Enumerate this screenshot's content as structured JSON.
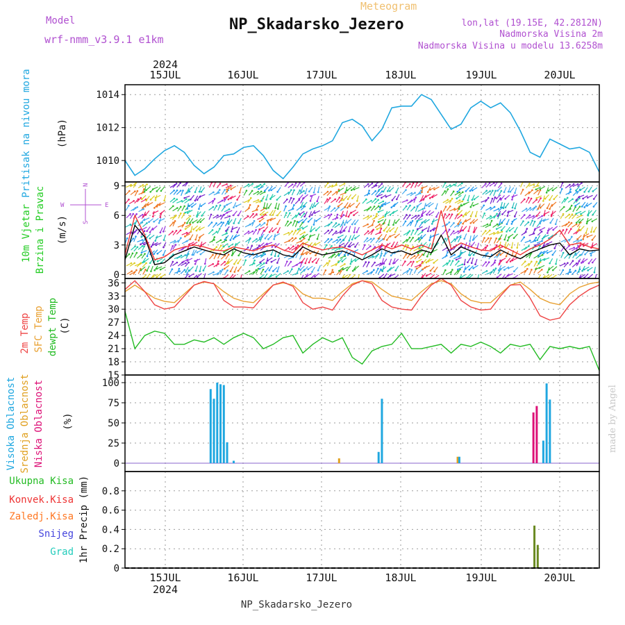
{
  "header": {
    "model_label": "Model",
    "model_name": "wrf-nmm_v3.9.1 e1km",
    "meteogram_label": "Meteogram",
    "station_title": "NP_Skadarsko_Jezero",
    "lonlat": "lon,lat (19.15E, 42.2812N)",
    "altitude": "Nadmorska Visina 2m",
    "model_altitude": "Nadmorska Visina u modelu 13.6258m",
    "year": "2024",
    "footer_station": "NP_Skadarsko_Jezero",
    "credit": "made by Angel"
  },
  "days": [
    "15JUL",
    "16JUL",
    "17JUL",
    "18JUL",
    "19JUL",
    "20JUL"
  ],
  "colors": {
    "pressure": "#1fa7e0",
    "wind_label": "#22cc22",
    "wind_speed": "#000000",
    "wind_gust": "#ee3333",
    "temp2m": "#ee4444",
    "sfc_temp": "#e8a030",
    "dewpoint": "#22bb22",
    "cloud_high": "#1fa7e0",
    "cloud_mid": "#e0a020",
    "cloud_low": "#dd1177",
    "rain_total": "#22bb22",
    "rain_conv": "#ee3333",
    "rain_frozen": "#ff7722",
    "snow": "#4444dd",
    "graupel": "#22ccbb",
    "header_purple": "#b050d0",
    "header_orange": "#f0c070"
  },
  "panels": {
    "pressure": {
      "label": "Pritisak na nivou mora",
      "unit": "(hPa)",
      "ticks": [
        "1010",
        "1012",
        "1014"
      ]
    },
    "wind": {
      "label1": "10m Vjetar",
      "label2": "Brzina i Pravac",
      "unit": "(m/s)",
      "ticks": [
        "0",
        "3",
        "6",
        "9"
      ],
      "compass": {
        "n": "N",
        "s": "S",
        "e": "E",
        "w": "W"
      }
    },
    "temp": {
      "label1": "2m Temp",
      "label2": "SFC Temp",
      "label3": "dewpt Temp",
      "unit": "(C)",
      "ticks": [
        "15",
        "18",
        "21",
        "24",
        "27",
        "30",
        "33",
        "36"
      ]
    },
    "cloud": {
      "label1": "Visoka Oblacnost",
      "label2": "Srednja Oblacnost",
      "label3": "Niska Oblacnost",
      "unit": "(%)",
      "ticks": [
        "0",
        "25",
        "50",
        "75",
        "100"
      ]
    },
    "precip": {
      "legend": [
        "Ukupna Kisa",
        "Konvek.Kisa",
        "Zaledj.Kisa",
        "Snijeg",
        "Grad"
      ],
      "unit": "1hr Precip (mm)",
      "ticks": [
        "0",
        "0.2",
        "0.4",
        "0.6",
        "0.8"
      ]
    }
  },
  "chart_data": [
    {
      "type": "line",
      "title": "Pritisak na nivou mora",
      "ylabel": "(hPa)",
      "ylim": [
        1008.7,
        1014.6
      ],
      "x_hours": [
        0,
        3,
        6,
        9,
        12,
        15,
        18,
        21,
        24,
        27,
        30,
        33,
        36,
        39,
        42,
        45,
        48,
        51,
        54,
        57,
        60,
        63,
        66,
        69,
        72,
        75,
        78,
        81,
        84,
        87,
        90,
        93,
        96,
        99,
        102,
        105,
        108,
        111,
        114,
        117,
        120,
        123,
        126,
        129,
        132,
        135,
        138,
        141,
        144
      ],
      "series": [
        {
          "name": "Pritisak na nivou mora",
          "values": [
            1010.0,
            1009.1,
            1009.5,
            1010.1,
            1010.6,
            1010.9,
            1010.5,
            1009.7,
            1009.2,
            1009.6,
            1010.3,
            1010.4,
            1010.8,
            1010.9,
            1010.3,
            1009.4,
            1008.9,
            1009.6,
            1010.4,
            1010.7,
            1010.9,
            1011.2,
            1012.3,
            1012.5,
            1012.1,
            1011.2,
            1011.9,
            1013.2,
            1013.3,
            1013.3,
            1014.0,
            1013.7,
            1012.8,
            1011.9,
            1012.2,
            1013.2,
            1013.6,
            1013.2,
            1013.5,
            1012.9,
            1011.8,
            1010.5,
            1010.2,
            1011.3,
            1011.0,
            1010.7,
            1010.8,
            1010.5,
            1009.3
          ]
        }
      ]
    },
    {
      "type": "line",
      "title": "10m Vjetar Brzina i Pravac",
      "ylabel": "(m/s)",
      "ylim": [
        -0.4,
        9.4
      ],
      "x_hours": [
        0,
        3,
        6,
        9,
        12,
        15,
        18,
        21,
        24,
        27,
        30,
        33,
        36,
        39,
        42,
        45,
        48,
        51,
        54,
        57,
        60,
        63,
        66,
        69,
        72,
        75,
        78,
        81,
        84,
        87,
        90,
        93,
        96,
        99,
        102,
        105,
        108,
        111,
        114,
        117,
        120,
        123,
        126,
        129,
        132,
        135,
        138,
        141,
        144
      ],
      "series": [
        {
          "values": [
            1.5,
            5.0,
            3.8,
            1.0,
            1.2,
            2.0,
            2.4,
            2.8,
            2.5,
            2.2,
            2.0,
            2.6,
            2.2,
            2.0,
            2.3,
            2.5,
            2.0,
            1.8,
            2.8,
            2.3,
            2.0,
            2.2,
            2.4,
            2.0,
            1.5,
            2.0,
            2.6,
            2.2,
            2.4,
            2.0,
            2.5,
            2.2,
            4.0,
            2.0,
            2.8,
            2.4,
            2.0,
            1.8,
            2.5,
            2.0,
            1.6,
            2.2,
            2.6,
            3.0,
            3.2,
            2.0,
            2.6,
            2.4,
            2.5
          ]
        },
        {
          "values": [
            2.0,
            6.0,
            4.0,
            1.5,
            1.8,
            2.5,
            2.8,
            3.0,
            2.8,
            2.5,
            2.4,
            2.8,
            2.6,
            2.4,
            2.8,
            3.0,
            2.5,
            2.2,
            3.2,
            2.8,
            2.5,
            2.7,
            2.8,
            2.4,
            2.0,
            2.5,
            3.0,
            2.6,
            3.0,
            2.6,
            3.0,
            2.6,
            6.5,
            2.6,
            3.2,
            2.8,
            2.5,
            2.4,
            3.0,
            2.5,
            2.0,
            2.6,
            3.0,
            3.6,
            4.5,
            3.0,
            3.2,
            2.8,
            2.6
          ]
        }
      ]
    },
    {
      "type": "line",
      "title": "2m Temp / SFC Temp / dewpt Temp",
      "ylabel": "(C)",
      "ylim": [
        15,
        37
      ],
      "x_hours": [
        0,
        3,
        6,
        9,
        12,
        15,
        18,
        21,
        24,
        27,
        30,
        33,
        36,
        39,
        42,
        45,
        48,
        51,
        54,
        57,
        60,
        63,
        66,
        69,
        72,
        75,
        78,
        81,
        84,
        87,
        90,
        93,
        96,
        99,
        102,
        105,
        108,
        111,
        114,
        117,
        120,
        123,
        126,
        129,
        132,
        135,
        138,
        141,
        144
      ],
      "series": [
        {
          "name": "2m Temp",
          "values": [
            34.5,
            36.5,
            34.0,
            31.0,
            30.0,
            30.5,
            33.0,
            35.5,
            36.3,
            35.8,
            32.0,
            30.5,
            30.5,
            30.3,
            33.0,
            35.5,
            36.2,
            35.2,
            31.5,
            30.0,
            30.5,
            29.8,
            33.0,
            35.5,
            36.5,
            35.8,
            32.0,
            30.5,
            30.0,
            29.8,
            33.0,
            35.5,
            37.0,
            35.5,
            32.0,
            30.5,
            29.8,
            30.0,
            33.0,
            35.5,
            35.6,
            32.5,
            28.5,
            27.5,
            28.0,
            31.0,
            33.0,
            34.5,
            35.5
          ]
        },
        {
          "name": "SFC Temp",
          "values": [
            34.0,
            35.5,
            34.0,
            32.5,
            31.8,
            31.5,
            33.5,
            35.5,
            36.2,
            35.8,
            34.0,
            32.5,
            31.8,
            31.5,
            33.5,
            35.5,
            36.0,
            35.5,
            33.5,
            32.5,
            32.5,
            32.0,
            34.0,
            35.8,
            36.5,
            36.2,
            34.5,
            33.0,
            32.5,
            32.0,
            34.0,
            35.8,
            36.5,
            35.8,
            33.5,
            32.0,
            31.5,
            31.5,
            33.5,
            35.5,
            36.2,
            34.5,
            32.5,
            31.5,
            31.0,
            33.5,
            35.0,
            35.8,
            36.2
          ]
        },
        {
          "name": "dewpt Temp",
          "values": [
            29.5,
            21.0,
            24.0,
            25.0,
            24.5,
            22.0,
            22.0,
            23.0,
            22.5,
            23.5,
            22.0,
            23.5,
            24.5,
            23.5,
            21.0,
            22.0,
            23.5,
            24.0,
            20.0,
            22.0,
            23.5,
            22.5,
            23.5,
            19.0,
            17.5,
            20.5,
            21.5,
            22.0,
            24.5,
            21.0,
            21.0,
            21.5,
            22.0,
            20.0,
            22.0,
            21.5,
            22.5,
            21.5,
            20.0,
            22.0,
            21.5,
            22.0,
            18.5,
            21.5,
            21.0,
            21.5,
            21.0,
            21.5,
            16.0
          ]
        }
      ]
    },
    {
      "type": "bar",
      "title": "Visoka / Srednja / Niska Oblacnost",
      "ylabel": "(%)",
      "ylim": [
        0,
        100
      ],
      "bars": [
        {
          "series": "Visoka Oblacnost",
          "hour": 26,
          "value": 92
        },
        {
          "series": "Visoka Oblacnost",
          "hour": 27,
          "value": 80
        },
        {
          "series": "Visoka Oblacnost",
          "hour": 28,
          "value": 100
        },
        {
          "series": "Visoka Oblacnost",
          "hour": 29,
          "value": 98
        },
        {
          "series": "Visoka Oblacnost",
          "hour": 30,
          "value": 97
        },
        {
          "series": "Visoka Oblacnost",
          "hour": 31,
          "value": 26
        },
        {
          "series": "Visoka Oblacnost",
          "hour": 33,
          "value": 3
        },
        {
          "series": "Srednja Oblacnost",
          "hour": 65,
          "value": 6
        },
        {
          "series": "Visoka Oblacnost",
          "hour": 77,
          "value": 14
        },
        {
          "series": "Visoka Oblacnost",
          "hour": 78,
          "value": 80
        },
        {
          "series": "Srednja Oblacnost",
          "hour": 101,
          "value": 8
        },
        {
          "series": "Visoka Oblacnost",
          "hour": 101.5,
          "value": 8
        },
        {
          "series": "Niska Oblacnost",
          "hour": 124,
          "value": 63
        },
        {
          "series": "Niska Oblacnost",
          "hour": 125,
          "value": 71
        },
        {
          "series": "Visoka Oblacnost",
          "hour": 127,
          "value": 28
        },
        {
          "series": "Visoka Oblacnost",
          "hour": 128,
          "value": 99
        },
        {
          "series": "Visoka Oblacnost",
          "hour": 129,
          "value": 79
        }
      ]
    },
    {
      "type": "bar",
      "title": "1hr Precip",
      "ylabel": "1hr Precip (mm)",
      "ylim": [
        0,
        1.0
      ],
      "bars": [
        {
          "series": "Ukupna Kisa",
          "hour": 124.3,
          "value": 0.44
        },
        {
          "series": "Ukupna Kisa",
          "hour": 125.3,
          "value": 0.24
        }
      ]
    }
  ]
}
